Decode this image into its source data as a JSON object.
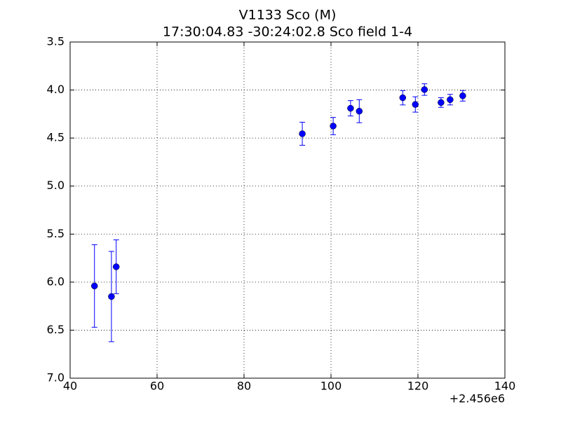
{
  "chart_data": {
    "type": "scatter",
    "title": "V1133 Sco (M)",
    "subtitle": "17:30:04.83 -30:24:02.8 Sco field 1-4",
    "x_offset_label": "+2.456e6",
    "series": [
      {
        "color": "#0000ff",
        "x": [
          45.6,
          49.5,
          50.6,
          93.4,
          100.5,
          104.5,
          106.5,
          116.5,
          119.4,
          121.5,
          125.3,
          127.4,
          130.3
        ],
        "values": [
          6.04,
          6.15,
          5.84,
          4.455,
          4.375,
          4.19,
          4.22,
          4.08,
          4.15,
          3.995,
          4.13,
          4.1,
          4.06
        ],
        "errors": [
          0.43,
          0.47,
          0.28,
          0.12,
          0.09,
          0.08,
          0.12,
          0.075,
          0.08,
          0.06,
          0.05,
          0.055,
          0.055
        ]
      }
    ],
    "xlim": [
      40,
      140
    ],
    "xticks": [
      40,
      60,
      80,
      100,
      120,
      140
    ],
    "ylim": [
      3.5,
      7.0
    ],
    "invert_y": true,
    "yticks": [
      {
        "value": 3.5,
        "label": "3.5"
      },
      {
        "value": 4,
        "label": "4.0"
      },
      {
        "value": 4.5,
        "label": "4.5"
      },
      {
        "value": 5,
        "label": "5.0"
      },
      {
        "value": 5.5,
        "label": "5.5"
      },
      {
        "value": 6,
        "label": "6.0"
      },
      {
        "value": 6.5,
        "label": "6.5"
      },
      {
        "value": 7,
        "label": "7.0"
      }
    ],
    "grid": true
  }
}
